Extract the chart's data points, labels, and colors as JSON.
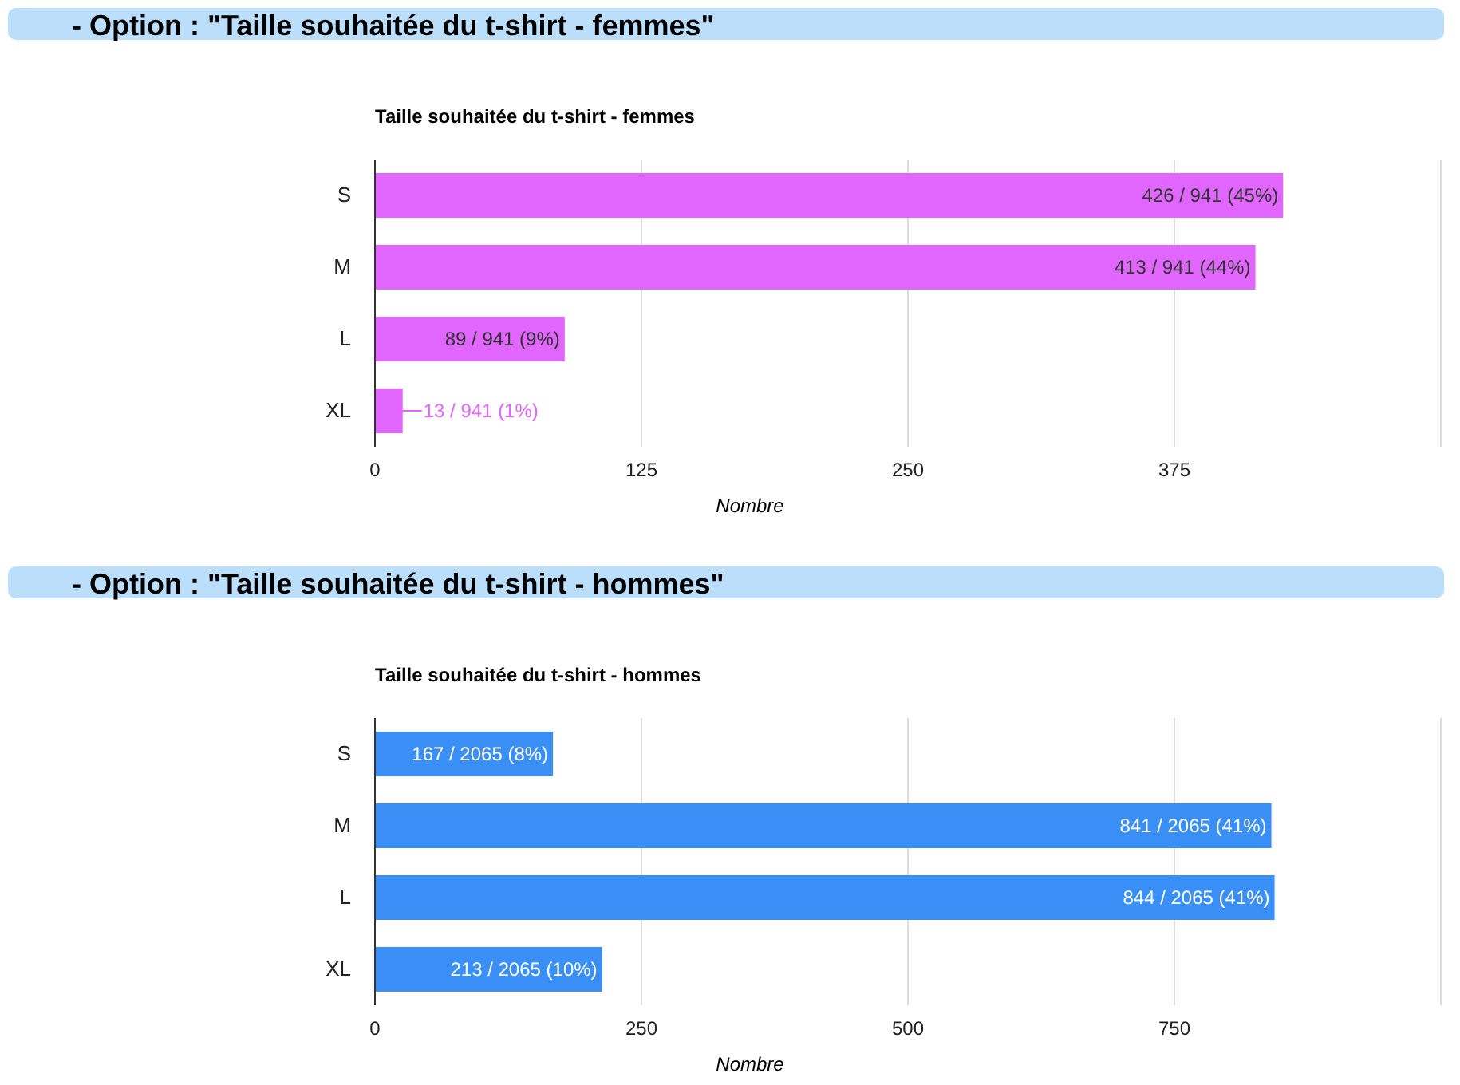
{
  "chart_data": [
    {
      "type": "bar",
      "orientation": "horizontal",
      "subtitle": "- Option : \"Taille souhaitée du t-shirt - femmes\"",
      "title": "Taille souhaitée du t-shirt - femmes",
      "xlabel": "Nombre",
      "categories": [
        "S",
        "M",
        "L",
        "XL"
      ],
      "values": [
        426,
        413,
        89,
        13
      ],
      "color": "#e066ff",
      "value_labels": [
        "426 / 941 (45%)",
        "413 / 941 (44%)",
        "89 / 941 (9%)",
        "13 / 941 (1%)"
      ],
      "xlim": [
        0,
        500
      ],
      "xticks": [
        0,
        125,
        250,
        375,
        {
          "value": 500,
          "label": null
        }
      ],
      "grid": "x"
    },
    {
      "type": "bar",
      "orientation": "horizontal",
      "subtitle": "- Option : \"Taille souhaitée du t-shirt - hommes\"",
      "title": "Taille souhaitée du t-shirt - hommes",
      "xlabel": "Nombre",
      "categories": [
        "S",
        "M",
        "L",
        "XL"
      ],
      "values": [
        167,
        841,
        844,
        213
      ],
      "color": "#3a8ff7",
      "value_labels": [
        "167 / 2065 (8%)",
        "841 / 2065 (41%)",
        "844 / 2065 (41%)",
        "213 / 2065 (10%)"
      ],
      "xlim": [
        0,
        1000
      ],
      "xticks": [
        0,
        250,
        500,
        750,
        {
          "value": 1000,
          "label": null
        }
      ],
      "grid": "x"
    }
  ]
}
